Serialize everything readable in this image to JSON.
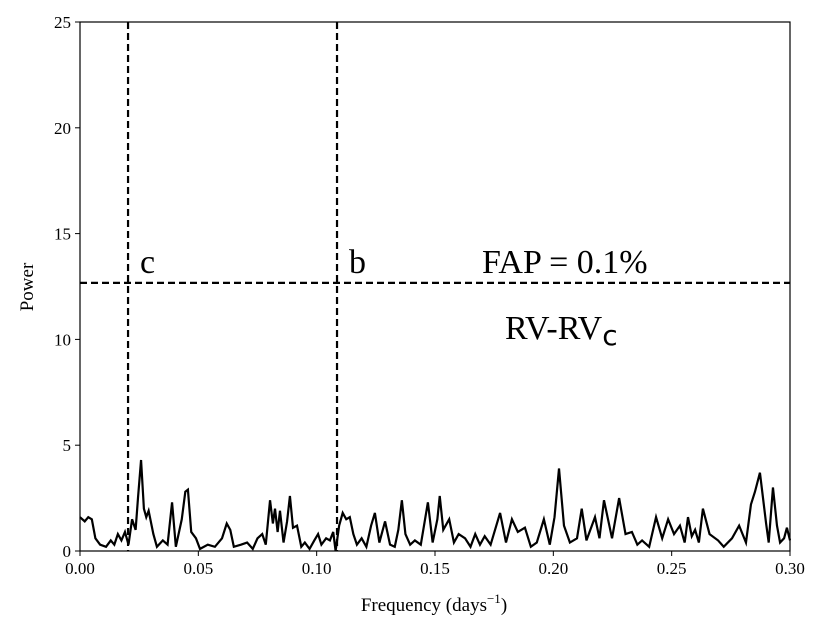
{
  "chart_data": {
    "type": "line",
    "xlabel": {
      "text": "Frequency (days",
      "sup": "−1",
      "tail": ")"
    },
    "ylabel": "Power",
    "xlim": [
      0,
      0.3
    ],
    "ylim": [
      0,
      25
    ],
    "xticks": [
      {
        "value": 0,
        "label": "0.00"
      },
      {
        "value": 0.05,
        "label": "0.05"
      },
      {
        "value": 0.1,
        "label": "0.10"
      },
      {
        "value": 0.15,
        "label": "0.15"
      },
      {
        "value": 0.2,
        "label": "0.20"
      },
      {
        "value": 0.25,
        "label": "0.25"
      },
      {
        "value": 0.3,
        "label": "0.30"
      }
    ],
    "yticks": [
      0,
      5,
      10,
      15,
      20,
      25
    ],
    "color": "#000000",
    "vlines": [
      {
        "value": 0.0203,
        "label": "c"
      },
      {
        "value": 0.1086,
        "label": "b"
      }
    ],
    "hline": {
      "value": 12.67,
      "label": "FAP = 0.1%"
    },
    "annotation": {
      "text": "RV-RV",
      "sub": "c"
    },
    "x": [
      0,
      0.002,
      0.0035,
      0.005,
      0.0065,
      0.0085,
      0.011,
      0.013,
      0.0145,
      0.016,
      0.0175,
      0.019,
      0.0205,
      0.022,
      0.0235,
      0.0245,
      0.0258,
      0.027,
      0.028,
      0.029,
      0.031,
      0.0325,
      0.035,
      0.037,
      0.0389,
      0.0405,
      0.043,
      0.0445,
      0.0456,
      0.047,
      0.049,
      0.0507,
      0.054,
      0.057,
      0.06,
      0.062,
      0.0635,
      0.065,
      0.068,
      0.0706,
      0.073,
      0.075,
      0.077,
      0.0785,
      0.0803,
      0.0815,
      0.0824,
      0.0835,
      0.0845,
      0.086,
      0.0875,
      0.0887,
      0.09,
      0.0917,
      0.0935,
      0.095,
      0.097,
      0.099,
      0.1006,
      0.102,
      0.104,
      0.1056,
      0.107,
      0.108,
      0.1095,
      0.111,
      0.1125,
      0.114,
      0.1155,
      0.117,
      0.119,
      0.121,
      0.123,
      0.1246,
      0.1265,
      0.1289,
      0.131,
      0.133,
      0.1345,
      0.136,
      0.1375,
      0.1395,
      0.1415,
      0.144,
      0.147,
      0.149,
      0.151,
      0.152,
      0.1535,
      0.156,
      0.158,
      0.16,
      0.1627,
      0.165,
      0.167,
      0.169,
      0.171,
      0.1735,
      0.1775,
      0.18,
      0.1825,
      0.185,
      0.188,
      0.1905,
      0.193,
      0.196,
      0.1985,
      0.2005,
      0.2024,
      0.2045,
      0.207,
      0.21,
      0.212,
      0.214,
      0.2176,
      0.2195,
      0.2214,
      0.2248,
      0.2278,
      0.2305,
      0.2332,
      0.2355,
      0.2375,
      0.2405,
      0.2434,
      0.246,
      0.2485,
      0.251,
      0.2535,
      0.2555,
      0.2569,
      0.2585,
      0.2599,
      0.2615,
      0.2632,
      0.266,
      0.2696,
      0.272,
      0.2755,
      0.2785,
      0.2814,
      0.2835,
      0.2852,
      0.2873,
      0.2899,
      0.291,
      0.2928,
      0.2945,
      0.2958,
      0.2975,
      0.2987,
      0.3
    ],
    "values": [
      1.6,
      1.4,
      1.6,
      1.5,
      0.6,
      0.3,
      0.2,
      0.5,
      0.3,
      0.8,
      0.5,
      0.9,
      0.3,
      1.5,
      1.0,
      2.5,
      4.3,
      2.0,
      1.6,
      1.9,
      0.8,
      0.2,
      0.5,
      0.3,
      2.3,
      0.2,
      1.5,
      2.8,
      2.9,
      0.9,
      0.6,
      0.1,
      0.3,
      0.2,
      0.6,
      1.3,
      1.0,
      0.2,
      0.3,
      0.4,
      0.1,
      0.6,
      0.8,
      0.3,
      2.4,
      1.3,
      2.0,
      0.9,
      1.9,
      0.4,
      1.4,
      2.6,
      1.1,
      1.2,
      0.2,
      0.4,
      0.1,
      0.5,
      0.8,
      0.3,
      0.6,
      0.5,
      0.9,
      0.0,
      1.2,
      1.8,
      1.5,
      1.6,
      0.8,
      0.3,
      0.6,
      0.2,
      1.2,
      1.8,
      0.4,
      1.4,
      0.3,
      0.2,
      1.0,
      2.4,
      0.8,
      0.3,
      0.5,
      0.3,
      2.3,
      0.4,
      1.5,
      2.6,
      1.0,
      1.5,
      0.4,
      0.8,
      0.6,
      0.2,
      0.8,
      0.3,
      0.7,
      0.3,
      1.8,
      0.4,
      1.5,
      0.9,
      1.1,
      0.2,
      0.4,
      1.5,
      0.3,
      1.6,
      3.9,
      1.2,
      0.4,
      0.6,
      2.0,
      0.5,
      1.6,
      0.6,
      2.4,
      0.6,
      2.5,
      0.8,
      0.9,
      0.3,
      0.5,
      0.2,
      1.6,
      0.6,
      1.5,
      0.8,
      1.2,
      0.4,
      1.6,
      0.7,
      1.0,
      0.4,
      2.0,
      0.8,
      0.5,
      0.2,
      0.6,
      1.2,
      0.4,
      2.2,
      2.8,
      3.7,
      1.3,
      0.4,
      3.0,
      1.2,
      0.4,
      0.6,
      1.1,
      0.5
    ]
  }
}
